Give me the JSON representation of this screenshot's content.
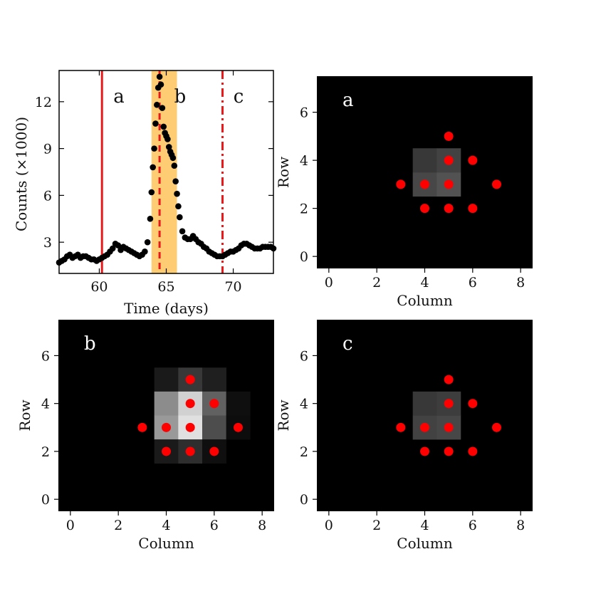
{
  "chart_data": [
    {
      "type": "scatter",
      "xlabel": "Time (days)",
      "ylabel": "Counts (×1000)",
      "xlim": [
        57,
        73
      ],
      "ylim": [
        1,
        14
      ],
      "xticks": [
        "60",
        "65",
        "70"
      ],
      "yticks": [
        "3",
        "6",
        "9",
        "12"
      ],
      "annotations": [
        "a",
        "b",
        "c"
      ],
      "vlines": [
        {
          "label": "a",
          "x": 60.2,
          "style": "solid",
          "color": "#e8191b"
        },
        {
          "label": "b",
          "x": 64.5,
          "style": "dashed",
          "color": "#e8191b"
        },
        {
          "label": "c",
          "x": 69.2,
          "style": "dashdot",
          "color": "#e8191b"
        }
      ],
      "shaded_span": {
        "x": [
          63.9,
          65.8
        ],
        "color": "#fdc35a"
      },
      "series": [
        {
          "marker_color": "#000000",
          "x": [
            57.0,
            57.2,
            57.4,
            57.6,
            57.8,
            58.0,
            58.2,
            58.4,
            58.6,
            58.8,
            59.0,
            59.2,
            59.4,
            59.6,
            59.8,
            60.0,
            60.2,
            60.4,
            60.6,
            60.8,
            61.0,
            61.2,
            61.4,
            61.6,
            61.8,
            62.0,
            62.2,
            62.4,
            62.6,
            62.8,
            63.0,
            63.2,
            63.4,
            63.6,
            63.8,
            63.9,
            64.0,
            64.1,
            64.2,
            64.3,
            64.4,
            64.5,
            64.6,
            64.7,
            64.8,
            64.9,
            65.0,
            65.1,
            65.2,
            65.3,
            65.4,
            65.5,
            65.6,
            65.7,
            65.8,
            65.9,
            66.0,
            66.2,
            66.4,
            66.6,
            66.8,
            67.0,
            67.2,
            67.4,
            67.6,
            67.8,
            68.0,
            68.2,
            68.4,
            68.6,
            68.8,
            69.0,
            69.2,
            69.4,
            69.6,
            69.8,
            70.0,
            70.2,
            70.4,
            70.6,
            70.8,
            71.0,
            71.2,
            71.4,
            71.6,
            71.8,
            72.0,
            72.2,
            72.4,
            72.6,
            72.8,
            73.0
          ],
          "y": [
            1.7,
            1.8,
            1.9,
            2.1,
            2.2,
            2.0,
            2.1,
            2.2,
            2.0,
            2.1,
            2.1,
            2.0,
            1.9,
            1.9,
            1.8,
            1.9,
            2.0,
            2.1,
            2.2,
            2.4,
            2.6,
            2.9,
            2.8,
            2.5,
            2.7,
            2.6,
            2.5,
            2.4,
            2.3,
            2.2,
            2.1,
            2.2,
            2.4,
            3.0,
            4.5,
            6.2,
            7.8,
            9.0,
            10.6,
            11.8,
            12.9,
            13.6,
            13.1,
            11.6,
            10.4,
            10.0,
            9.8,
            9.6,
            9.1,
            8.8,
            8.6,
            8.4,
            7.9,
            6.9,
            6.1,
            5.3,
            4.6,
            3.7,
            3.3,
            3.2,
            3.2,
            3.4,
            3.2,
            3.0,
            2.9,
            2.7,
            2.6,
            2.4,
            2.3,
            2.2,
            2.1,
            2.1,
            2.1,
            2.2,
            2.3,
            2.4,
            2.4,
            2.5,
            2.6,
            2.8,
            2.9,
            2.9,
            2.8,
            2.7,
            2.6,
            2.6,
            2.6,
            2.7,
            2.7,
            2.7,
            2.7,
            2.6
          ]
        }
      ]
    },
    {
      "type": "heatmap",
      "label": "a",
      "xlabel": "Column",
      "ylabel": "Row",
      "xlim": [
        -0.5,
        8.5
      ],
      "ylim": [
        -0.5,
        7.5
      ],
      "xticks": [
        "0",
        "2",
        "4",
        "6",
        "8"
      ],
      "yticks": [
        "0",
        "2",
        "4",
        "6"
      ],
      "cells": [
        {
          "col": 4,
          "row": 3,
          "value": 0.28
        },
        {
          "col": 5,
          "row": 3,
          "value": 0.32
        },
        {
          "col": 4,
          "row": 4,
          "value": 0.22
        },
        {
          "col": 5,
          "row": 4,
          "value": 0.26
        }
      ],
      "points": [
        [
          5,
          5
        ],
        [
          5,
          4
        ],
        [
          6,
          4
        ],
        [
          3,
          3
        ],
        [
          4,
          3
        ],
        [
          5,
          3
        ],
        [
          7,
          3
        ],
        [
          4,
          2
        ],
        [
          5,
          2
        ],
        [
          6,
          2
        ]
      ],
      "point_color": "#ff0000"
    },
    {
      "type": "heatmap",
      "label": "b",
      "xlabel": "Column",
      "ylabel": "Row",
      "xlim": [
        -0.5,
        8.5
      ],
      "ylim": [
        -0.5,
        7.5
      ],
      "xticks": [
        "0",
        "2",
        "4",
        "6",
        "8"
      ],
      "yticks": [
        "0",
        "2",
        "4",
        "6"
      ],
      "cells": [
        {
          "col": 4,
          "row": 5,
          "value": 0.1
        },
        {
          "col": 5,
          "row": 5,
          "value": 0.22
        },
        {
          "col": 6,
          "row": 5,
          "value": 0.12
        },
        {
          "col": 4,
          "row": 4,
          "value": 0.55
        },
        {
          "col": 5,
          "row": 4,
          "value": 0.82
        },
        {
          "col": 6,
          "row": 4,
          "value": 0.38
        },
        {
          "col": 7,
          "row": 4,
          "value": 0.06
        },
        {
          "col": 4,
          "row": 3,
          "value": 0.6
        },
        {
          "col": 5,
          "row": 3,
          "value": 0.88
        },
        {
          "col": 6,
          "row": 3,
          "value": 0.3
        },
        {
          "col": 7,
          "row": 3,
          "value": 0.05
        },
        {
          "col": 4,
          "row": 2,
          "value": 0.1
        },
        {
          "col": 5,
          "row": 2,
          "value": 0.18
        },
        {
          "col": 6,
          "row": 2,
          "value": 0.06
        }
      ],
      "points": [
        [
          5,
          5
        ],
        [
          5,
          4
        ],
        [
          6,
          4
        ],
        [
          3,
          3
        ],
        [
          4,
          3
        ],
        [
          5,
          3
        ],
        [
          7,
          3
        ],
        [
          4,
          2
        ],
        [
          5,
          2
        ],
        [
          6,
          2
        ]
      ],
      "point_color": "#ff0000"
    },
    {
      "type": "heatmap",
      "label": "c",
      "xlabel": "Column",
      "ylabel": "Row",
      "xlim": [
        -0.5,
        8.5
      ],
      "ylim": [
        -0.5,
        7.5
      ],
      "xticks": [
        "0",
        "2",
        "4",
        "6",
        "8"
      ],
      "yticks": [
        "0",
        "2",
        "4",
        "6"
      ],
      "cells": [
        {
          "col": 4,
          "row": 3,
          "value": 0.26
        },
        {
          "col": 5,
          "row": 3,
          "value": 0.28
        },
        {
          "col": 4,
          "row": 4,
          "value": 0.22
        },
        {
          "col": 5,
          "row": 4,
          "value": 0.24
        }
      ],
      "points": [
        [
          5,
          5
        ],
        [
          5,
          4
        ],
        [
          6,
          4
        ],
        [
          3,
          3
        ],
        [
          4,
          3
        ],
        [
          5,
          3
        ],
        [
          7,
          3
        ],
        [
          4,
          2
        ],
        [
          5,
          2
        ],
        [
          6,
          2
        ]
      ],
      "point_color": "#ff0000"
    }
  ]
}
